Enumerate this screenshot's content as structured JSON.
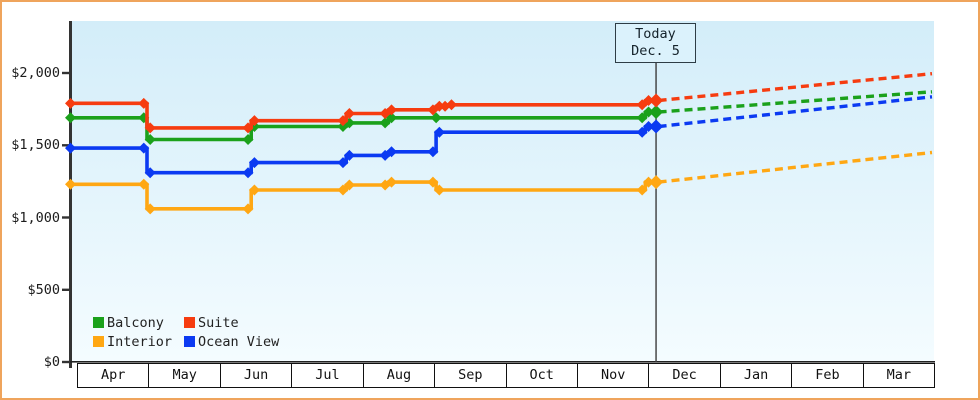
{
  "panel": {
    "frame_color": "#efa45c",
    "background": "#ffffff"
  },
  "chart_data": {
    "type": "line",
    "description": "Stepped cabin price history by month with dashed price forecast after today",
    "point_format": "[month_position_from_april, price_usd]",
    "x_axis": {
      "months": [
        "Apr",
        "May",
        "Jun",
        "Jul",
        "Aug",
        "Sep",
        "Oct",
        "Nov",
        "Dec",
        "Jan",
        "Feb",
        "Mar"
      ]
    },
    "y_axis": {
      "tick_values": [
        0,
        500,
        1000,
        1500,
        2000
      ],
      "tick_labels": [
        "$0",
        "$500",
        "$1,000",
        "$1,500",
        "$2,000"
      ],
      "range": [
        0,
        2360
      ],
      "grid": false
    },
    "today": {
      "line1": "Today",
      "line2": "Dec. 5",
      "month_position": 8.11
    },
    "plot_bg_top": "#d3edf9",
    "plot_bg_bottom": "#f4fcff",
    "axis_color": "#333333",
    "today_line_color": "#3c3c3c",
    "series": [
      {
        "name": "Balcony",
        "color": "#1ba11b",
        "points": [
          [
            0,
            1690
          ],
          [
            0.98,
            1540
          ],
          [
            2.44,
            1630
          ],
          [
            3.77,
            1655
          ],
          [
            4.36,
            1690
          ],
          [
            5.03,
            1690
          ],
          [
            7.96,
            1730
          ]
        ],
        "forecast_end_value": 1870
      },
      {
        "name": "Suite",
        "color": "#f63c10",
        "points": [
          [
            0,
            1790
          ],
          [
            0.98,
            1620
          ],
          [
            2.44,
            1670
          ],
          [
            3.77,
            1720
          ],
          [
            4.36,
            1745
          ],
          [
            5.03,
            1770
          ],
          [
            5.2,
            1780
          ],
          [
            7.96,
            1810
          ]
        ],
        "forecast_end_value": 1995
      },
      {
        "name": "Interior",
        "color": "#ffa713",
        "points": [
          [
            0,
            1230
          ],
          [
            0.98,
            1060
          ],
          [
            2.44,
            1190
          ],
          [
            3.77,
            1225
          ],
          [
            4.36,
            1245
          ],
          [
            5.03,
            1190
          ],
          [
            7.96,
            1245
          ]
        ],
        "forecast_end_value": 1450
      },
      {
        "name": "Ocean View",
        "color": "#0b3af2",
        "points": [
          [
            0,
            1480
          ],
          [
            0.98,
            1310
          ],
          [
            2.44,
            1380
          ],
          [
            3.77,
            1430
          ],
          [
            4.36,
            1455
          ],
          [
            5.03,
            1590
          ],
          [
            7.96,
            1630
          ]
        ],
        "forecast_end_value": 1835
      }
    ],
    "legend_position": "bottom-left"
  }
}
